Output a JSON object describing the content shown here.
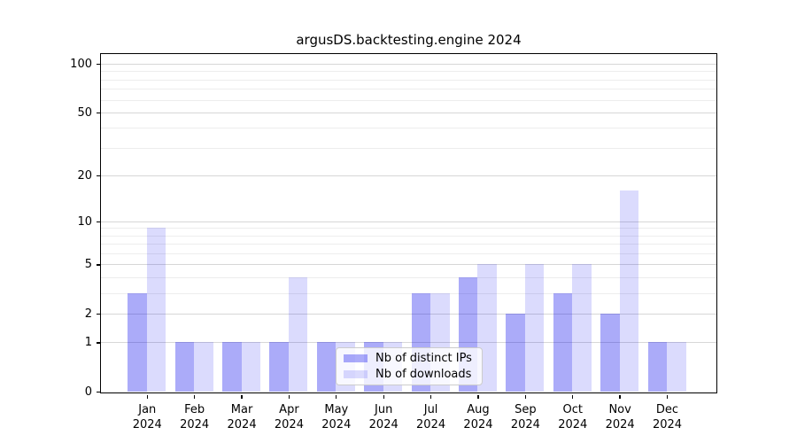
{
  "chart_data": {
    "type": "bar",
    "title": "argusDS.backtesting.engine 2024",
    "categories": [
      "Jan 2024",
      "Feb 2024",
      "Mar 2024",
      "Apr 2024",
      "May 2024",
      "Jun 2024",
      "Jul 2024",
      "Aug 2024",
      "Sep 2024",
      "Oct 2024",
      "Nov 2024",
      "Dec 2024"
    ],
    "series": [
      {
        "name": "Nb of distinct IPs",
        "color": "rgba(0,0,238,0.33)",
        "solid_hex": "#aaaaf9",
        "values": [
          3,
          1,
          1,
          1,
          1,
          1,
          3,
          4,
          2,
          3,
          2,
          1
        ]
      },
      {
        "name": "Nb of downloads",
        "color": "rgba(0,0,238,0.14)",
        "solid_hex": "#dcdcfb",
        "values": [
          9,
          1,
          1,
          4,
          1,
          1,
          3,
          5,
          5,
          5,
          16,
          1
        ]
      }
    ],
    "xlabel": "",
    "ylabel": "",
    "yscale": "log1p",
    "yticks": [
      0,
      1,
      2,
      5,
      10,
      20,
      50,
      100
    ],
    "yticks_minor": [
      3,
      4,
      6,
      7,
      8,
      9,
      30,
      40,
      60,
      70,
      80,
      90
    ],
    "ylim": [
      0,
      115
    ],
    "grid": true,
    "legend_position": "inside lower-center",
    "colors": {
      "spine": "#000000",
      "grid_major": "#d7d7d7",
      "grid_minor": "#ededed",
      "background": "#ffffff"
    }
  }
}
